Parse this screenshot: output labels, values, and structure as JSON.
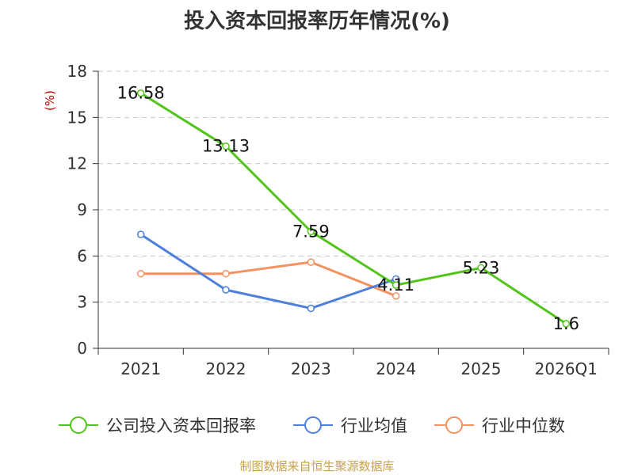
{
  "title": "投入资本回报率历年情况(%)",
  "source": "制图数据来自恒生聚源数据库",
  "chart_data": {
    "type": "line",
    "categories": [
      "2021",
      "2022",
      "2023",
      "2024",
      "2025",
      "2026Q1"
    ],
    "ylabel": "(%)",
    "ylim": [
      0,
      18
    ],
    "yticks": [
      0,
      3,
      6,
      9,
      12,
      15,
      18
    ],
    "grid": true,
    "legend_position": "bottom",
    "series": [
      {
        "name": "公司投入资本回报率",
        "color": "#52c41a",
        "values": [
          16.58,
          13.13,
          7.59,
          4.11,
          5.23,
          1.6
        ],
        "labels": [
          "16.58",
          "13.13",
          "7.59",
          "4.11",
          "5.23",
          "1.6"
        ]
      },
      {
        "name": "行业均值",
        "color": "#4f7fdc",
        "values": [
          7.4,
          3.8,
          2.6,
          4.5,
          null,
          null
        ]
      },
      {
        "name": "行业中位数",
        "color": "#f5915e",
        "values": [
          4.85,
          4.85,
          5.6,
          3.4,
          null,
          null
        ]
      }
    ]
  }
}
